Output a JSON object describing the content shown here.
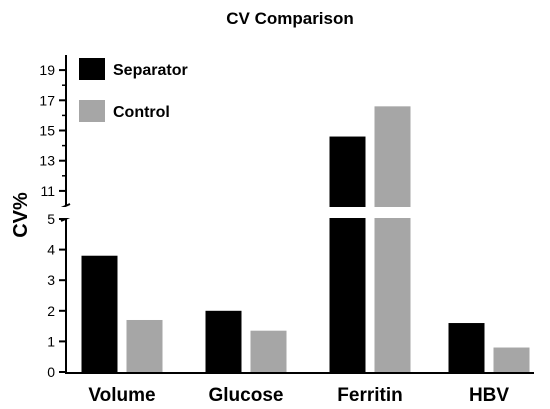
{
  "chart_data": {
    "type": "bar",
    "title": "CV Comparison",
    "xlabel": "",
    "ylabel": "CV%",
    "categories": [
      "Volume",
      "Glucose",
      "Ferritin",
      "HBV"
    ],
    "series": [
      {
        "name": "Separator",
        "color": "#000000",
        "values": [
          3.8,
          2.0,
          14.6,
          1.6
        ]
      },
      {
        "name": "Control",
        "color": "#a6a6a6",
        "values": [
          1.7,
          1.35,
          16.6,
          0.8
        ]
      }
    ],
    "y_axis": {
      "broken": true,
      "lower_range": [
        0,
        5
      ],
      "upper_range": [
        10,
        20
      ],
      "lower_ticks": [
        "0",
        "1",
        "2",
        "3",
        "4",
        "5"
      ],
      "upper_ticks": [
        "11",
        "13",
        "15",
        "17",
        "19"
      ]
    },
    "grid": false,
    "legend": "top-left"
  }
}
